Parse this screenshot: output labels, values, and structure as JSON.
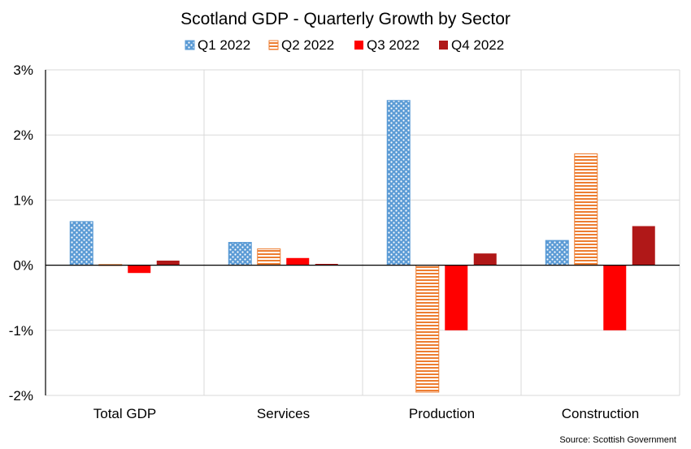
{
  "chart_data": {
    "type": "bar",
    "title": "Scotland GDP - Quarterly Growth by Sector",
    "source": "Source: Scottish Government",
    "categories": [
      "Total GDP",
      "Services",
      "Production",
      "Construction"
    ],
    "ylim": [
      -2,
      3
    ],
    "yticks": [
      {
        "value": 3,
        "label": "3%"
      },
      {
        "value": 2,
        "label": "2%"
      },
      {
        "value": 1,
        "label": "1%"
      },
      {
        "value": 0,
        "label": "0%"
      },
      {
        "value": -1,
        "label": "-1%"
      },
      {
        "value": -2,
        "label": "-2%"
      }
    ],
    "grid": true,
    "legend_position": "top",
    "series": [
      {
        "name": "Q1 2022",
        "color": "#5b9bd5",
        "pattern": "dots",
        "values": [
          0.67,
          0.35,
          2.53,
          0.38
        ]
      },
      {
        "name": "Q2 2022",
        "color": "#ed7d31",
        "pattern": "horizontal-lines",
        "values": [
          0.01,
          0.25,
          -1.95,
          1.71
        ]
      },
      {
        "name": "Q3 2022",
        "color": "#ff0000",
        "pattern": "solid",
        "values": [
          -0.12,
          0.11,
          -1.0,
          -1.0
        ]
      },
      {
        "name": "Q4 2022",
        "color": "#b01818",
        "pattern": "solid",
        "values": [
          0.07,
          0.02,
          0.18,
          0.6
        ]
      }
    ]
  }
}
